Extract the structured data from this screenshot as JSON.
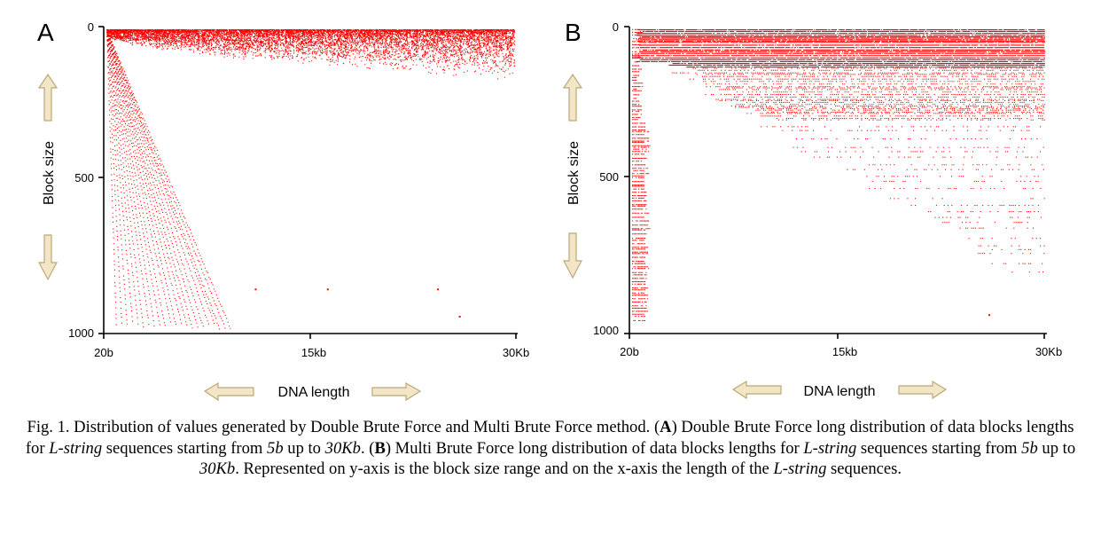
{
  "chart_data": [
    {
      "type": "scatter",
      "panel_label": "A",
      "xlabel": "DNA length",
      "ylabel": "Block size",
      "x_ticks": [
        "20b",
        "15kb",
        "30Kb"
      ],
      "y_ticks": [
        "0",
        "500",
        "1000"
      ],
      "xlim": [
        20,
        30000
      ],
      "ylim": [
        0,
        1000
      ],
      "y_inverted": true,
      "grid": false,
      "legend": "none",
      "point_color": "#ff0000",
      "structure": "top band of dense points for small block sizes across all lengths (upper edge rising from ~50 at 20b to ~170 at 30Kb), plus fan of diagonal lines from near origin reaching block size ~980 at lengths up to ~9Kb",
      "isolated_points": [
        {
          "x": 11000,
          "y": 860
        },
        {
          "x": 16300,
          "y": 860
        },
        {
          "x": 24400,
          "y": 860
        },
        {
          "x": 26000,
          "y": 950
        }
      ]
    },
    {
      "type": "scatter",
      "panel_label": "B",
      "xlabel": "DNA length",
      "ylabel": "Block size",
      "x_ticks": [
        "20b",
        "15kb",
        "30Kb"
      ],
      "y_ticks": [
        "0",
        "500",
        "1000"
      ],
      "xlim": [
        20,
        30000
      ],
      "ylim": [
        0,
        1000
      ],
      "y_inverted": true,
      "grid": false,
      "legend": "none",
      "point_color": "#ff0000",
      "structure": "horizontal rows of points at discrete block sizes; each row begins at a length that grows with block size (triangular envelope), plus a narrow dense column at lengths below ~1Kb reaching block size ~960",
      "isolated_points": [
        {
          "x": 26000,
          "y": 945
        }
      ]
    }
  ],
  "caption": {
    "fig": "Fig. 1.",
    "t1": " Distribution of values generated by Double Brute Force and Multi Brute Force method. (",
    "A": "A",
    "t2": ") Double Brute Force long distribution of data blocks lengths for ",
    "lstring1": "L-string",
    "t3": " sequences starting from ",
    "b5_1": "5b",
    "t4": " up to ",
    "kb30_1": "30Kb",
    "t5": ". (",
    "B": "B",
    "t6": ") Multi Brute Force long distribution of data blocks lengths for ",
    "lstring2": "L-string",
    "t7": " sequences starting from ",
    "b5_2": "5b",
    "t8": " up to ",
    "kb30_2": "30Kb",
    "t9": ". Represented on y-axis is the block size range and on the x-axis the length of the ",
    "lstring3": "L-string",
    "t10": " sequences."
  }
}
